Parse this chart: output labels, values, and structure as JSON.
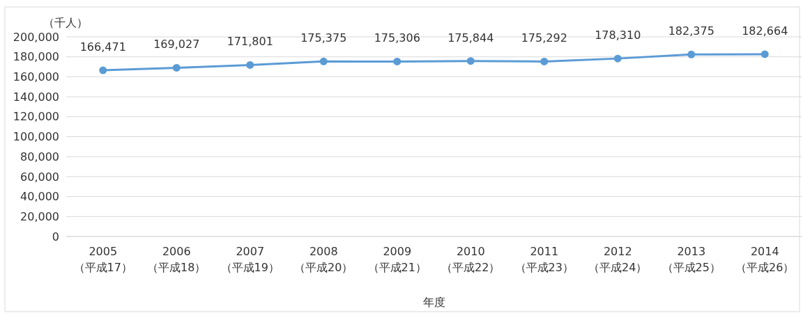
{
  "chart_data": {
    "type": "line",
    "ylabel": "（千人）",
    "xlabel": "年度",
    "categories": [
      "2005\n（平成17）",
      "2006\n（平成18）",
      "2007\n（平成19）",
      "2008\n（平成20）",
      "2009\n（平成21）",
      "2010\n（平成22）",
      "2011\n（平成23）",
      "2012\n（平成24）",
      "2013\n（平成25）",
      "2014\n（平成26）"
    ],
    "series": [
      {
        "color": "#5b9bd5",
        "values": [
          166471,
          169027,
          171801,
          175375,
          175306,
          175844,
          175292,
          178310,
          182375,
          182664
        ],
        "value_labels": [
          "166,471",
          "169,027",
          "171,801",
          "175,375",
          "175,306",
          "175,844",
          "175,292",
          "178,310",
          "182,375",
          "182,664"
        ]
      }
    ],
    "ylim": [
      0,
      200000
    ],
    "yticks": [
      {
        "value": 0,
        "label": "0"
      },
      {
        "value": 20000,
        "label": "20,000"
      },
      {
        "value": 40000,
        "label": "40,000"
      },
      {
        "value": 60000,
        "label": "60,000"
      },
      {
        "value": 80000,
        "label": "80,000"
      },
      {
        "value": 100000,
        "label": "100,000"
      },
      {
        "value": 120000,
        "label": "120,000"
      },
      {
        "value": 140000,
        "label": "140,000"
      },
      {
        "value": 160000,
        "label": "160,000"
      },
      {
        "value": 180000,
        "label": "180,000"
      },
      {
        "value": 200000,
        "label": "200,000"
      }
    ],
    "grid": "y",
    "marker": "circle",
    "line_style": "solid"
  }
}
